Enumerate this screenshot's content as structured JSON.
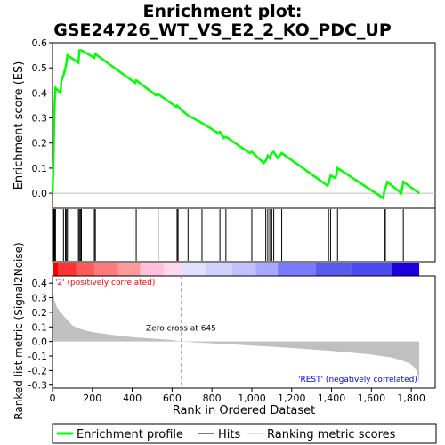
{
  "chart_data": {
    "type": "line",
    "title_lines": [
      "Enrichment plot:",
      "GSE24726_WT_VS_E2_2_KO_PDC_UP"
    ],
    "es_panel": {
      "ylabel": "Enrichment score (ES)",
      "ylim": [
        -0.06,
        0.6
      ],
      "yticks": [
        0.0,
        0.1,
        0.2,
        0.3,
        0.4,
        0.5,
        0.6
      ],
      "ytick_labels": [
        "0.0",
        "0.1",
        "0.2",
        "0.3",
        "0.4",
        "0.5",
        "0.6"
      ],
      "series": {
        "name": "Enrichment profile",
        "color": "#00ff00",
        "x": [
          0,
          5,
          8,
          10,
          12,
          15,
          40,
          45,
          55,
          65,
          70,
          75,
          130,
          135,
          145,
          210,
          215,
          415,
          420,
          520,
          530,
          620,
          625,
          650,
          680,
          750,
          830,
          840,
          860,
          870,
          990,
          1000,
          1060,
          1070,
          1080,
          1090,
          1100,
          1110,
          1130,
          1140,
          1150,
          1380,
          1385,
          1395,
          1420,
          1430,
          1660,
          1665,
          1670,
          1680,
          1750,
          1760,
          1840
        ],
        "y": [
          0.0,
          0.12,
          0.27,
          0.34,
          0.38,
          0.42,
          0.4,
          0.45,
          0.47,
          0.5,
          0.52,
          0.55,
          0.52,
          0.57,
          0.57,
          0.54,
          0.555,
          0.44,
          0.45,
          0.39,
          0.395,
          0.345,
          0.35,
          0.33,
          0.31,
          0.28,
          0.24,
          0.245,
          0.22,
          0.225,
          0.16,
          0.165,
          0.12,
          0.13,
          0.15,
          0.14,
          0.16,
          0.165,
          0.14,
          0.15,
          0.16,
          0.03,
          0.04,
          0.07,
          0.06,
          0.1,
          -0.02,
          0.01,
          0.02,
          0.045,
          0.0,
          0.045,
          0.0
        ]
      }
    },
    "hits": {
      "name": "Hits",
      "x": [
        5,
        8,
        10,
        12,
        15,
        55,
        65,
        70,
        75,
        130,
        135,
        140,
        145,
        210,
        215,
        420,
        530,
        625,
        630,
        680,
        750,
        840,
        870,
        1000,
        1070,
        1080,
        1090,
        1100,
        1110,
        1150,
        1385,
        1395,
        1430,
        1665,
        1670,
        1760
      ]
    },
    "rank_panel": {
      "ylabel": "Ranked list metric (Signal2Noise)",
      "ylim": [
        -0.32,
        0.45
      ],
      "yticks": [
        -0.3,
        -0.2,
        -0.1,
        0.0,
        0.1,
        0.2,
        0.3,
        0.4
      ],
      "ytick_labels": [
        "-0.3",
        "-0.2",
        "-0.1",
        "0.0",
        "0.1",
        "0.2",
        "0.3",
        "0.4"
      ],
      "series": {
        "name": "Ranking metric scores",
        "color": "#c0c0c0",
        "x": [
          0,
          2,
          5,
          10,
          20,
          40,
          60,
          80,
          100,
          130,
          170,
          200,
          250,
          300,
          400,
          500,
          600,
          645,
          700,
          800,
          900,
          1000,
          1100,
          1200,
          1300,
          1400,
          1500,
          1600,
          1650,
          1700,
          1750,
          1790,
          1810,
          1825,
          1835,
          1840
        ],
        "y": [
          0.45,
          0.38,
          0.33,
          0.28,
          0.24,
          0.2,
          0.17,
          0.14,
          0.11,
          0.09,
          0.075,
          0.065,
          0.055,
          0.045,
          0.03,
          0.02,
          0.01,
          0.0,
          -0.005,
          -0.012,
          -0.02,
          -0.028,
          -0.036,
          -0.045,
          -0.055,
          -0.065,
          -0.077,
          -0.09,
          -0.1,
          -0.11,
          -0.13,
          -0.15,
          -0.17,
          -0.2,
          -0.24,
          -0.29
        ]
      },
      "annotations": {
        "positive": "'2' (positively correlated)",
        "negative": "'REST' (negatively correlated)",
        "zero_cross": "Zero cross at 645"
      },
      "zero_cross_at": 645
    },
    "xlabel": "Rank in Ordered Dataset",
    "xlim": [
      0,
      1920
    ],
    "xticks": [
      0,
      200,
      400,
      600,
      800,
      1000,
      1200,
      1400,
      1600,
      1800
    ],
    "xtick_labels": [
      "0",
      "200",
      "400",
      "600",
      "800",
      "1,000",
      "1,200",
      "1,400",
      "1,600",
      "1,800"
    ],
    "n_genes": 1840,
    "color_bar": {
      "segments": [
        {
          "to": 30,
          "color": "#ff0000"
        },
        {
          "to": 120,
          "color": "#ff3333"
        },
        {
          "to": 210,
          "color": "#ff5a5a"
        },
        {
          "to": 330,
          "color": "#ff7a7a"
        },
        {
          "to": 440,
          "color": "#ff9a9a"
        },
        {
          "to": 560,
          "color": "#ffc0e0"
        },
        {
          "to": 645,
          "color": "#ffd8f0"
        },
        {
          "to": 770,
          "color": "#e0e0ff"
        },
        {
          "to": 900,
          "color": "#d0d0ff"
        },
        {
          "to": 1020,
          "color": "#c0c0ff"
        },
        {
          "to": 1130,
          "color": "#a8a8ff"
        },
        {
          "to": 1320,
          "color": "#7a7aff"
        },
        {
          "to": 1500,
          "color": "#5a5aee"
        },
        {
          "to": 1700,
          "color": "#4a4aee"
        },
        {
          "to": 1840,
          "color": "#1a00dd"
        }
      ]
    },
    "legend": [
      {
        "label": "Enrichment profile",
        "color": "#00ff00"
      },
      {
        "label": "Hits",
        "color": "#000000"
      },
      {
        "label": "Ranking metric scores",
        "color": "#c0c0c0"
      }
    ]
  }
}
